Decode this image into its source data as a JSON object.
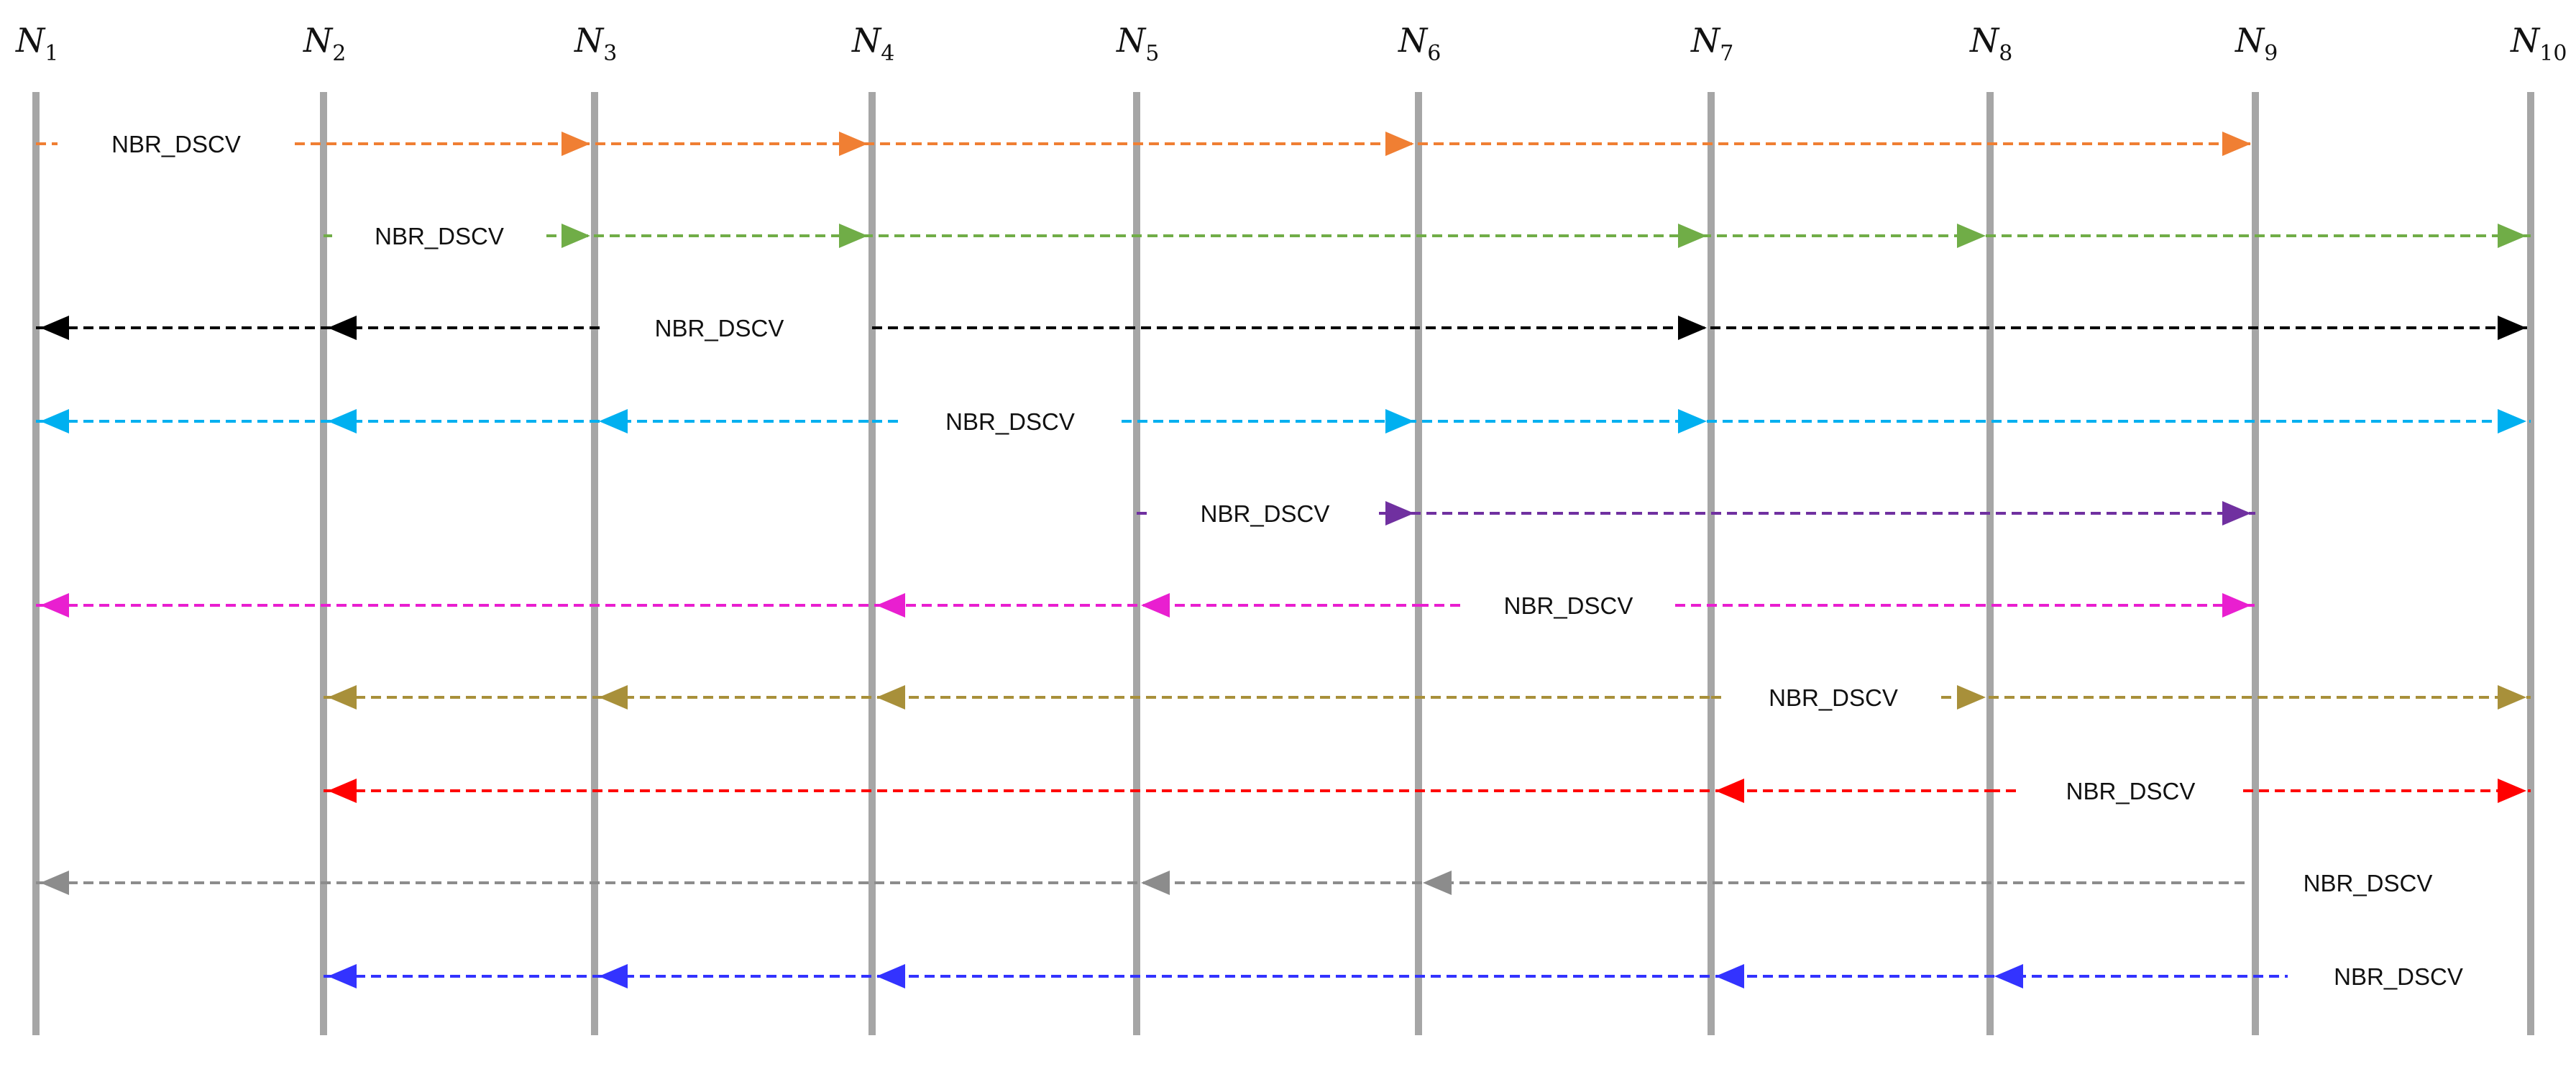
{
  "nodes": [
    {
      "id": "N1",
      "main": "N",
      "sub": "1"
    },
    {
      "id": "N2",
      "main": "N",
      "sub": "2"
    },
    {
      "id": "N3",
      "main": "N",
      "sub": "3"
    },
    {
      "id": "N4",
      "main": "N",
      "sub": "4"
    },
    {
      "id": "N5",
      "main": "N",
      "sub": "5"
    },
    {
      "id": "N6",
      "main": "N",
      "sub": "6"
    },
    {
      "id": "N7",
      "main": "N",
      "sub": "7"
    },
    {
      "id": "N8",
      "main": "N",
      "sub": "8"
    },
    {
      "id": "N9",
      "main": "N",
      "sub": "9"
    },
    {
      "id": "N10",
      "main": "N",
      "sub": "10"
    }
  ],
  "lifeline_color": "#a6a6a6",
  "messages": [
    {
      "source": "N1",
      "label": "NBR_DSCV",
      "color": "#f07f33",
      "targets": [
        "N3",
        "N4",
        "N6",
        "N9"
      ]
    },
    {
      "source": "N2",
      "label": "NBR_DSCV",
      "color": "#70ad47",
      "targets": [
        "N3",
        "N4",
        "N7",
        "N8",
        "N10"
      ]
    },
    {
      "source": "N4",
      "label": "NBR_DSCV",
      "color": "#000000",
      "targets": [
        "N1",
        "N2",
        "N7",
        "N10"
      ]
    },
    {
      "source": "N4",
      "label": "NBR_DSCV",
      "color": "#00b0f0",
      "targets": [
        "N1",
        "N2",
        "N3",
        "N6",
        "N7",
        "N10"
      ]
    },
    {
      "source": "N5",
      "label": "NBR_DSCV",
      "color": "#7030a0",
      "targets": [
        "N6",
        "N9"
      ]
    },
    {
      "source": "N6",
      "label": "NBR_DSCV",
      "color": "#e91fd0",
      "targets": [
        "N1",
        "N4",
        "N5",
        "N9"
      ]
    },
    {
      "source": "N7",
      "label": "NBR_DSCV",
      "color": "#a8903a",
      "targets": [
        "N2",
        "N3",
        "N4",
        "N8",
        "N10"
      ]
    },
    {
      "source": "N8",
      "label": "NBR_DSCV",
      "color": "#ff0000",
      "targets": [
        "N2",
        "N7",
        "N10"
      ]
    },
    {
      "source": "N10",
      "label": "NBR_DSCV",
      "color": "#8c8c8c",
      "targets": [
        "N1",
        "N5",
        "N6"
      ]
    },
    {
      "source": "N10",
      "label": "NBR_DSCV",
      "color": "#3333ff",
      "targets": [
        "N2",
        "N3",
        "N4",
        "N7",
        "N8"
      ]
    }
  ]
}
